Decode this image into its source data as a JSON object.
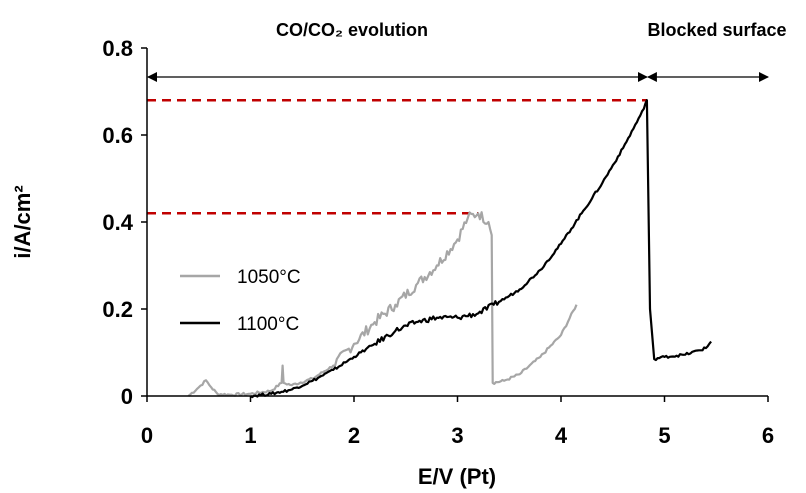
{
  "chart_data": {
    "type": "line",
    "xlabel": "E/V (Pt)",
    "ylabel": "i/A/cm²",
    "xlim": [
      0,
      6
    ],
    "ylim": [
      0,
      0.8
    ],
    "x_ticks": [
      0,
      1,
      2,
      3,
      4,
      5,
      6
    ],
    "y_ticks": [
      "0",
      "0.2",
      "0.4",
      "0.6",
      "0.8"
    ],
    "grid": false,
    "legend": "center-left",
    "series": [
      {
        "name": "1050°C",
        "color": "#a6a6a6",
        "x": [
          0.4,
          0.5,
          0.57,
          0.62,
          0.68,
          0.8,
          1.0,
          1.2,
          1.3,
          1.31,
          1.32,
          1.4,
          1.6,
          1.8,
          2.0,
          2.2,
          2.4,
          2.6,
          2.8,
          3.0,
          3.1,
          3.2,
          3.3,
          3.33,
          3.34,
          3.45,
          3.6,
          3.8,
          4.0,
          4.15
        ],
        "y": [
          0.0,
          0.02,
          0.036,
          0.02,
          0.005,
          0.003,
          0.005,
          0.012,
          0.03,
          0.07,
          0.03,
          0.025,
          0.04,
          0.07,
          0.12,
          0.17,
          0.21,
          0.255,
          0.3,
          0.36,
          0.41,
          0.42,
          0.4,
          0.37,
          0.03,
          0.035,
          0.05,
          0.09,
          0.14,
          0.21
        ]
      },
      {
        "name": "1100°C",
        "color": "#000000",
        "x": [
          1.0,
          1.2,
          1.4,
          1.6,
          1.8,
          2.0,
          2.2,
          2.4,
          2.6,
          2.8,
          3.0,
          3.2,
          3.35,
          3.5,
          3.6,
          3.8,
          4.0,
          4.2,
          4.4,
          4.6,
          4.8,
          4.83,
          4.86,
          4.9,
          5.0,
          5.2,
          5.4,
          5.45
        ],
        "y": [
          0.0,
          0.005,
          0.015,
          0.035,
          0.06,
          0.09,
          0.12,
          0.15,
          0.17,
          0.18,
          0.18,
          0.19,
          0.21,
          0.23,
          0.245,
          0.29,
          0.35,
          0.42,
          0.49,
          0.57,
          0.66,
          0.68,
          0.2,
          0.085,
          0.09,
          0.095,
          0.11,
          0.125
        ]
      }
    ],
    "reference_lines": [
      {
        "y": 0.68,
        "x_end": 4.83,
        "color": "#c00000"
      },
      {
        "y": 0.42,
        "x_end": 3.2,
        "color": "#c00000"
      }
    ],
    "annotations": [
      {
        "text": "CO/CO₂ evolution",
        "x_start": 0,
        "x_end": 4.83
      },
      {
        "text": "Blocked surface",
        "x_start": 4.83,
        "x_end": 6
      }
    ]
  }
}
